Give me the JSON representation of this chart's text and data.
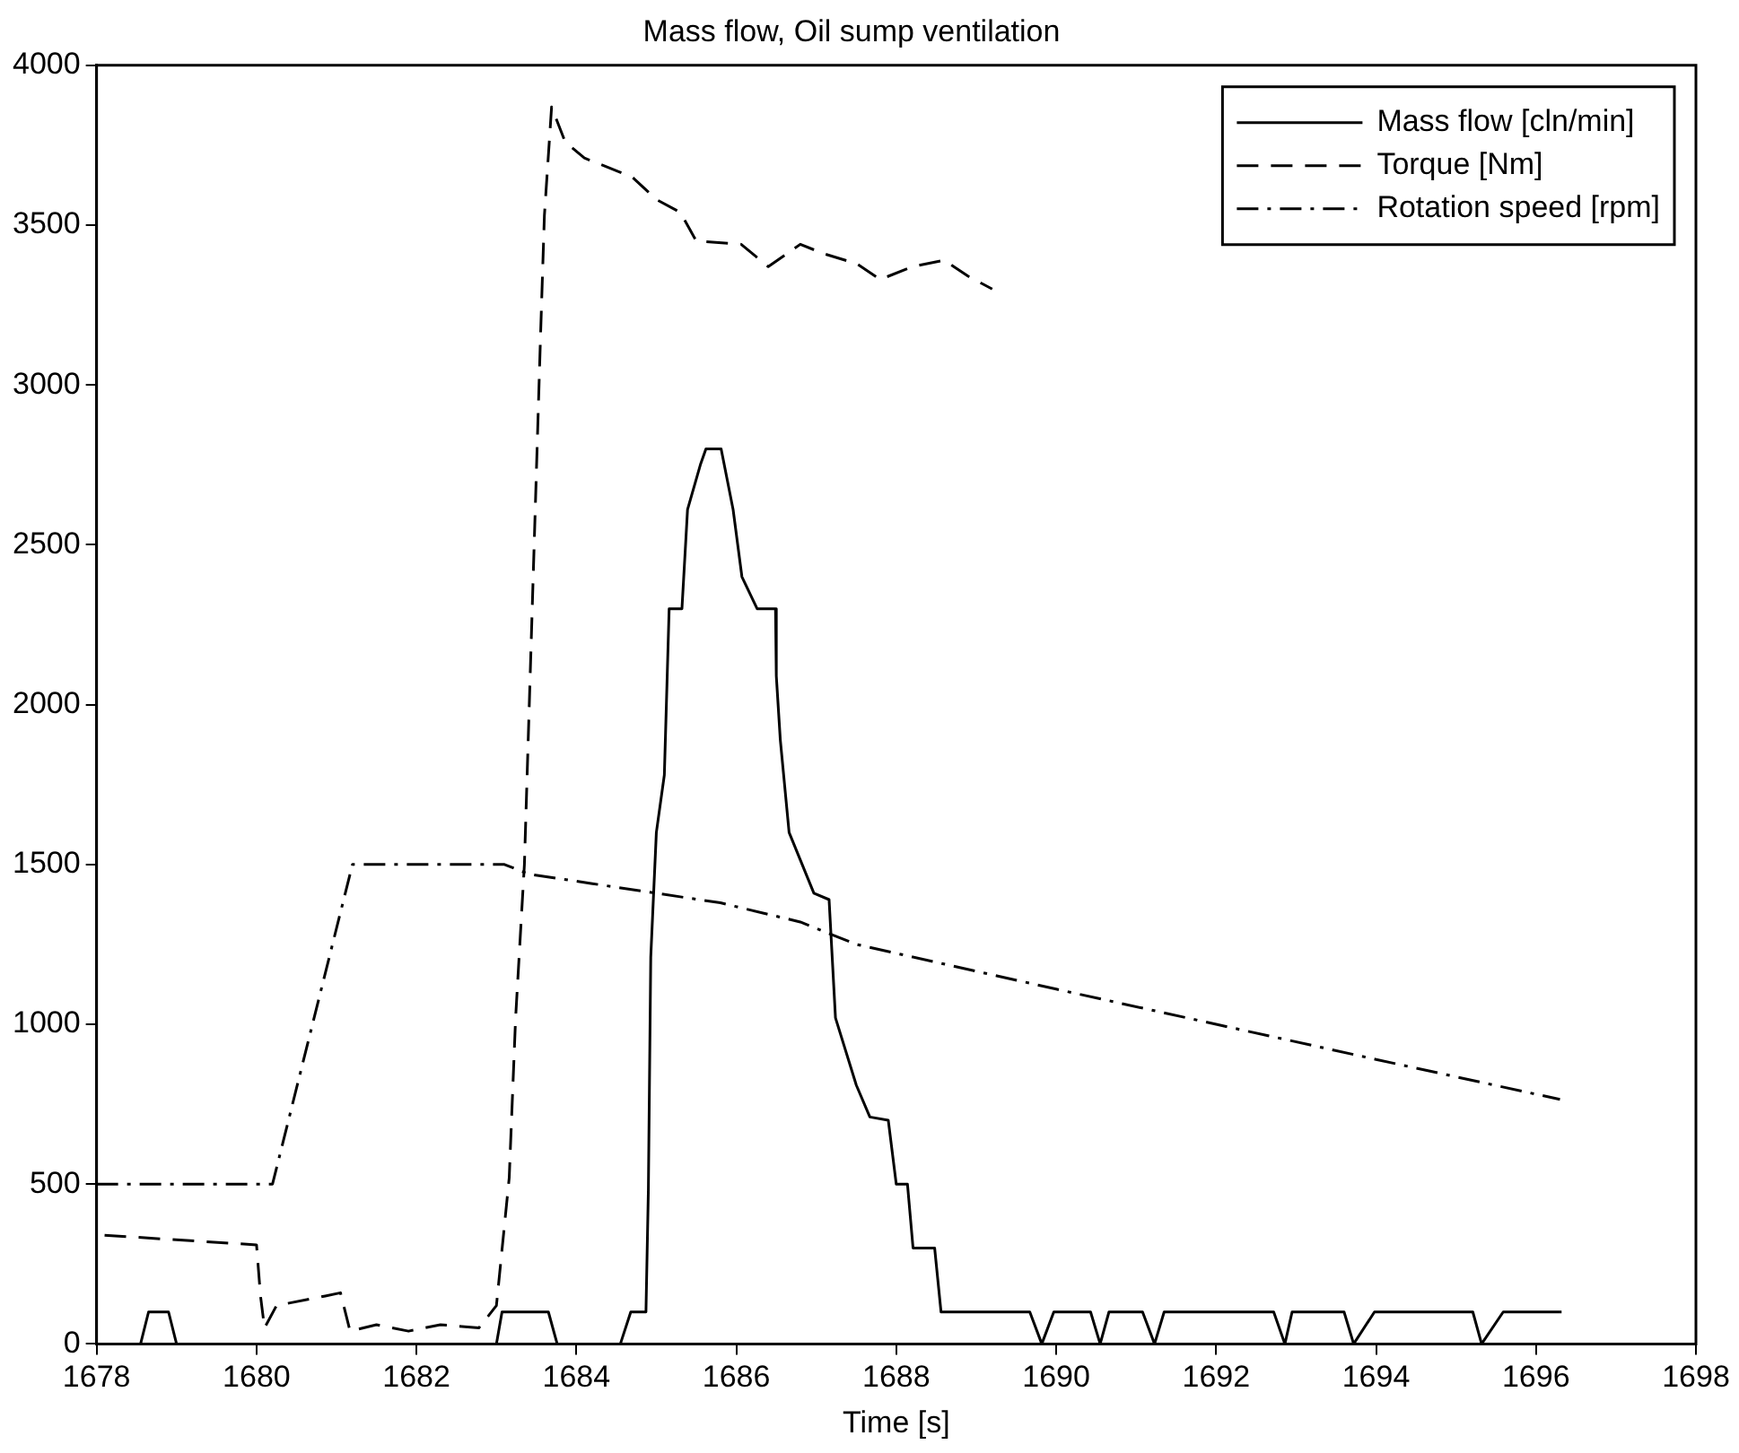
{
  "chart_data": {
    "type": "line",
    "title": "Mass flow, Oil sump ventilation",
    "xlabel": "Time [s]",
    "xlim": [
      1678,
      1698
    ],
    "xticks": [
      1678,
      1680,
      1682,
      1684,
      1686,
      1688,
      1690,
      1692,
      1694,
      1696,
      1698
    ],
    "ylim": [
      0,
      4000
    ],
    "yticks": [
      0,
      500,
      1000,
      1500,
      2000,
      2500,
      3000,
      3500,
      4000
    ],
    "grid": false,
    "legend": "top right",
    "marker": "none",
    "series": [
      {
        "name": "Mass flow [cln/min]",
        "color": "#000000",
        "line_style": "solid",
        "x": [
          1678.0,
          1678.55,
          1678.65,
          1678.9,
          1679.0,
          1683.0,
          1683.07,
          1683.65,
          1683.76,
          1684.55,
          1684.68,
          1684.87,
          1684.9,
          1684.93,
          1685.0,
          1685.1,
          1685.16,
          1685.32,
          1685.39,
          1685.55,
          1685.62,
          1685.81,
          1685.96,
          1686.07,
          1686.26,
          1686.49,
          1686.5,
          1686.55,
          1686.66,
          1686.97,
          1687.16,
          1687.24,
          1687.5,
          1687.67,
          1687.9,
          1688.0,
          1688.14,
          1688.21,
          1688.48,
          1688.56,
          1689.67,
          1689.82,
          1689.97,
          1690.43,
          1690.55,
          1690.66,
          1691.08,
          1691.23,
          1691.35,
          1692.72,
          1692.86,
          1692.95,
          1693.6,
          1693.72,
          1693.98,
          1695.21,
          1695.32,
          1695.59,
          1696.32
        ],
        "values": [
          0,
          0,
          100,
          100,
          0,
          0,
          100,
          100,
          0,
          0,
          100,
          100,
          480,
          1210,
          1600,
          1780,
          2300,
          2300,
          2610,
          2750,
          2800,
          2800,
          2610,
          2400,
          2300,
          2300,
          2090,
          1890,
          1600,
          1410,
          1390,
          1020,
          810,
          710,
          700,
          500,
          500,
          300,
          300,
          100,
          100,
          0,
          100,
          100,
          0,
          100,
          100,
          0,
          100,
          100,
          0,
          100,
          100,
          0,
          100,
          100,
          0,
          100,
          100
        ]
      },
      {
        "name": "Torque [Nm]",
        "color": "#000000",
        "line_style": "dashed",
        "x": [
          1678.1,
          1680.0,
          1680.05,
          1680.1,
          1680.25,
          1680.86,
          1681.05,
          1681.17,
          1681.5,
          1681.9,
          1682.3,
          1682.78,
          1683.0,
          1683.16,
          1683.24,
          1683.35,
          1683.55,
          1683.6,
          1683.69,
          1683.86,
          1684.1,
          1684.7,
          1685.0,
          1685.3,
          1685.5,
          1686.06,
          1686.4,
          1686.8,
          1687.1,
          1687.5,
          1687.8,
          1688.2,
          1688.6,
          1688.9,
          1689.2
        ],
        "values": [
          340,
          310,
          150,
          50,
          120,
          150,
          160,
          40,
          60,
          40,
          60,
          50,
          120,
          520,
          1020,
          1500,
          3140,
          3530,
          3870,
          3760,
          3710,
          3650,
          3580,
          3540,
          3450,
          3440,
          3370,
          3440,
          3410,
          3380,
          3330,
          3370,
          3390,
          3340,
          3300
        ]
      },
      {
        "name": "Rotation speed [rpm]",
        "color": "#000000",
        "line_style": "dashdot",
        "x": [
          1678.0,
          1680.2,
          1681.2,
          1683.1,
          1683.4,
          1684.2,
          1685.0,
          1685.8,
          1686.8,
          1687.5,
          1690.0,
          1692.0,
          1694.0,
          1696.3
        ],
        "values": [
          500,
          500,
          1500,
          1500,
          1470,
          1440,
          1410,
          1380,
          1320,
          1250,
          1110,
          1000,
          890,
          765
        ]
      }
    ]
  }
}
